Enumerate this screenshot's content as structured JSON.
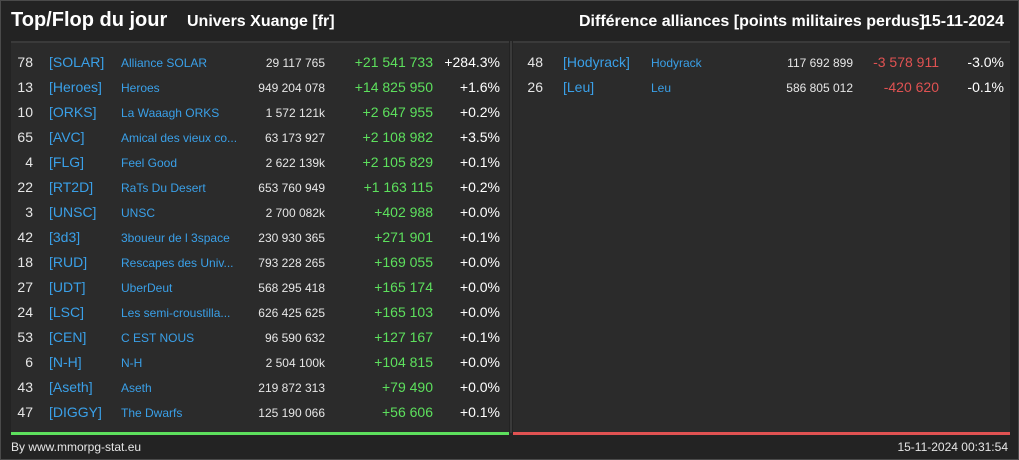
{
  "header": {
    "title": "Top/Flop du jour",
    "universe": "Univers Xuange [fr]",
    "subtitle": "Différence alliances [points militaires perdus]",
    "date": "15-11-2024"
  },
  "colors": {
    "positive": "#5de05d",
    "negative": "#e05252",
    "link": "#3aa0e8",
    "background": "#2b2b2b"
  },
  "top": [
    {
      "rank": "78",
      "tag": "[SOLAR]",
      "name": "Alliance SOLAR",
      "points": "29 117 765",
      "diff": "+21 541 733",
      "pct": "+284.3%"
    },
    {
      "rank": "13",
      "tag": "[Heroes]",
      "name": "Heroes",
      "points": "949 204 078",
      "diff": "+14 825 950",
      "pct": "+1.6%"
    },
    {
      "rank": "10",
      "tag": "[ORKS]",
      "name": "La Waaagh ORKS",
      "points": "1 572 121k",
      "diff": "+2 647 955",
      "pct": "+0.2%"
    },
    {
      "rank": "65",
      "tag": "[AVC]",
      "name": "Amical des vieux co...",
      "points": "63 173 927",
      "diff": "+2 108 982",
      "pct": "+3.5%"
    },
    {
      "rank": "4",
      "tag": "[FLG]",
      "name": "Feel Good",
      "points": "2 622 139k",
      "diff": "+2 105 829",
      "pct": "+0.1%"
    },
    {
      "rank": "22",
      "tag": "[RT2D]",
      "name": "RaTs Du Desert",
      "points": "653 760 949",
      "diff": "+1 163 115",
      "pct": "+0.2%"
    },
    {
      "rank": "3",
      "tag": "[UNSC]",
      "name": "UNSC",
      "points": "2 700 082k",
      "diff": "+402 988",
      "pct": "+0.0%"
    },
    {
      "rank": "42",
      "tag": "[3d3]",
      "name": "3boueur de l 3space",
      "points": "230 930 365",
      "diff": "+271 901",
      "pct": "+0.1%"
    },
    {
      "rank": "18",
      "tag": "[RUD]",
      "name": "Rescapes des Univ...",
      "points": "793 228 265",
      "diff": "+169 055",
      "pct": "+0.0%"
    },
    {
      "rank": "27",
      "tag": "[UDT]",
      "name": "UberDeut",
      "points": "568 295 418",
      "diff": "+165 174",
      "pct": "+0.0%"
    },
    {
      "rank": "24",
      "tag": "[LSC]",
      "name": "Les semi-croustilla...",
      "points": "626 425 625",
      "diff": "+165 103",
      "pct": "+0.0%"
    },
    {
      "rank": "53",
      "tag": "[CEN]",
      "name": "C EST NOUS",
      "points": "96 590 632",
      "diff": "+127 167",
      "pct": "+0.1%"
    },
    {
      "rank": "6",
      "tag": "[N-H]",
      "name": "N-H",
      "points": "2 504 100k",
      "diff": "+104 815",
      "pct": "+0.0%"
    },
    {
      "rank": "43",
      "tag": "[Aseth]",
      "name": "Aseth",
      "points": "219 872 313",
      "diff": "+79 490",
      "pct": "+0.0%"
    },
    {
      "rank": "47",
      "tag": "[DIGGY]",
      "name": "The Dwarfs",
      "points": "125 190 066",
      "diff": "+56 606",
      "pct": "+0.1%"
    }
  ],
  "flop": [
    {
      "rank": "48",
      "tag": "[Hodyrack]",
      "name": "Hodyrack",
      "points": "117 692 899",
      "diff": "-3 578 911",
      "pct": "-3.0%"
    },
    {
      "rank": "26",
      "tag": "[Leu]",
      "name": "Leu",
      "points": "586 805 012",
      "diff": "-420 620",
      "pct": "-0.1%"
    }
  ],
  "footer": {
    "credit": "By www.mmorpg-stat.eu",
    "timestamp": "15-11-2024 00:31:54"
  }
}
